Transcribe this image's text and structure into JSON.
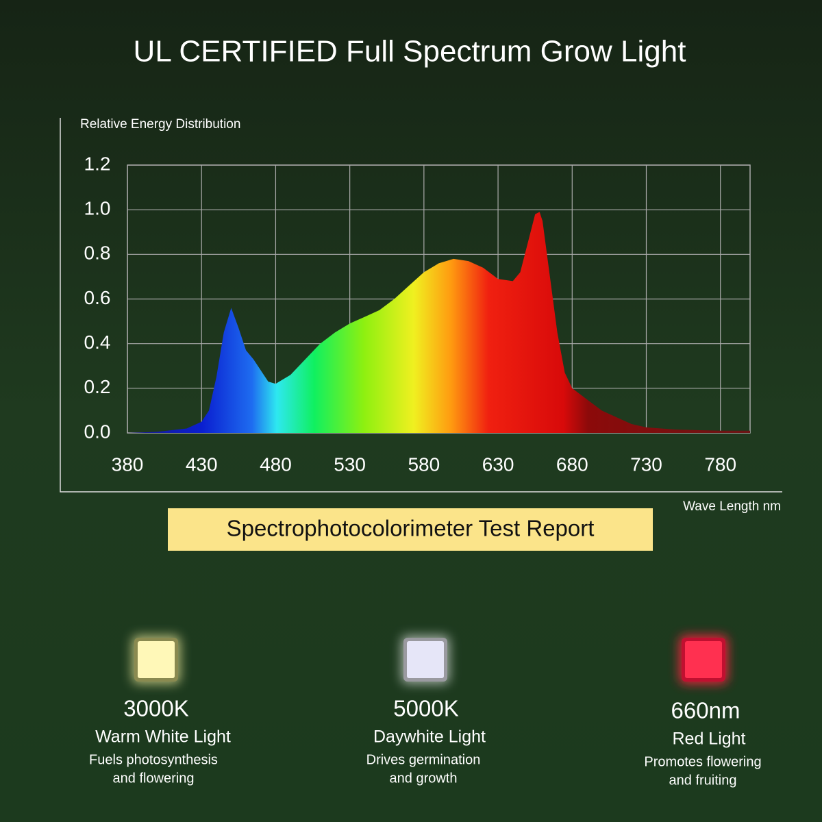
{
  "chart_data": {
    "type": "area",
    "title": "UL CERTIFIED Full Spectrum Grow Light",
    "y_label": "Relative Energy Distribution",
    "x_label": "Wave Length nm",
    "x": [
      380,
      400,
      420,
      430,
      435,
      440,
      445,
      450,
      455,
      460,
      465,
      470,
      475,
      480,
      490,
      500,
      510,
      520,
      530,
      540,
      550,
      560,
      570,
      580,
      590,
      600,
      610,
      620,
      630,
      640,
      645,
      650,
      655,
      658,
      660,
      665,
      670,
      675,
      680,
      690,
      700,
      710,
      720,
      730,
      750,
      780,
      800
    ],
    "values": [
      0.0,
      0.005,
      0.02,
      0.05,
      0.1,
      0.25,
      0.45,
      0.56,
      0.47,
      0.37,
      0.33,
      0.28,
      0.23,
      0.22,
      0.26,
      0.33,
      0.4,
      0.45,
      0.49,
      0.52,
      0.55,
      0.6,
      0.66,
      0.72,
      0.76,
      0.78,
      0.77,
      0.74,
      0.69,
      0.68,
      0.72,
      0.85,
      0.98,
      0.99,
      0.95,
      0.7,
      0.45,
      0.27,
      0.2,
      0.15,
      0.1,
      0.07,
      0.04,
      0.025,
      0.015,
      0.01,
      0.01
    ],
    "xlim": [
      380,
      800
    ],
    "ylim": [
      0,
      1.2
    ],
    "xticks": [
      380,
      430,
      480,
      530,
      580,
      630,
      680,
      730,
      780
    ],
    "yticks": [
      {
        "value": 0,
        "label": "0.0"
      },
      0.2,
      0.4,
      0.6,
      0.8,
      {
        "value": 1,
        "label": "1.0"
      },
      1.2
    ],
    "grid": true
  },
  "report_label": "Spectrophotocolorimeter Test Report",
  "cards": [
    {
      "value": "3000K",
      "name": "Warm White Light",
      "description": [
        "Fuels photosynthesis",
        "and flowering"
      ]
    },
    {
      "value": "5000K",
      "name": "Daywhite Light",
      "description": [
        "Drives germination",
        "and growth"
      ]
    },
    {
      "value": "660nm",
      "name": "Red Light",
      "description": [
        "Promotes flowering",
        "and fruiting"
      ]
    }
  ]
}
